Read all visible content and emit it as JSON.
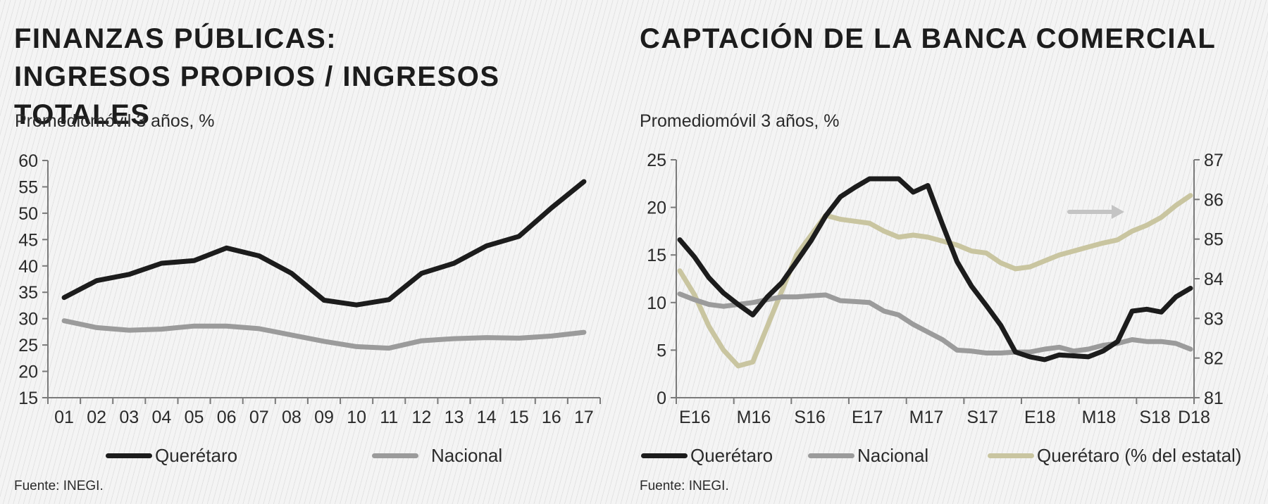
{
  "left": {
    "title_line1": "FINANZAS PÚBLICAS:",
    "title_line2": "INGRESOS PROPIOS / INGRESOS TOTALES",
    "subtitle": "Promediomóvil 3 años, %",
    "legend": [
      {
        "label": "Querétaro",
        "color": "#1c1c1c"
      },
      {
        "label": "Nacional",
        "color": "#9b9b9b"
      }
    ],
    "source": "Fuente: INEGI."
  },
  "right": {
    "title": "CAPTACIÓN DE LA BANCA COMERCIAL",
    "subtitle": "Promediomóvil 3 años, %",
    "legend": [
      {
        "label": "Querétaro",
        "color": "#1c1c1c"
      },
      {
        "label": "Nacional",
        "color": "#9b9b9b"
      },
      {
        "label": "Querétaro (% del estatal)",
        "color": "#c9c5a0"
      }
    ],
    "source": "Fuente: INEGI."
  },
  "chart_data": [
    {
      "type": "line",
      "title": "FINANZAS PÚBLICAS: INGRESOS PROPIOS / INGRESOS TOTALES",
      "subtitle": "Promediomóvil 3 años, %",
      "categories": [
        "01",
        "02",
        "03",
        "04",
        "05",
        "06",
        "07",
        "08",
        "09",
        "10",
        "11",
        "12",
        "13",
        "14",
        "15",
        "16",
        "17"
      ],
      "ylim": [
        15,
        60
      ],
      "yticks": [
        15,
        20,
        25,
        30,
        35,
        40,
        45,
        50,
        55,
        60
      ],
      "grid": false,
      "legend_position": "bottom",
      "series": [
        {
          "name": "Querétaro",
          "color": "#1c1c1c",
          "values": [
            34,
            37.2,
            38.4,
            40.5,
            41,
            43.4,
            41.9,
            38.6,
            33.5,
            32.6,
            33.6,
            38.6,
            40.5,
            43.8,
            45.6,
            51,
            56
          ]
        },
        {
          "name": "Nacional",
          "color": "#9b9b9b",
          "values": [
            29.6,
            28.3,
            27.8,
            28,
            28.6,
            28.6,
            28.1,
            26.9,
            25.7,
            24.7,
            24.4,
            25.8,
            26.2,
            26.4,
            26.3,
            26.7,
            27.4
          ]
        }
      ]
    },
    {
      "type": "line",
      "title": "CAPTACIÓN DE LA BANCA COMERCIAL",
      "subtitle": "Promediomóvil 3 años, %",
      "x_tick_labels": [
        "E16",
        "M16",
        "S16",
        "E17",
        "M17",
        "S17",
        "E18",
        "M18",
        "S18",
        "D18"
      ],
      "ylim": [
        0,
        25
      ],
      "yticks": [
        0,
        5,
        10,
        15,
        20,
        25
      ],
      "y2lim": [
        81,
        87
      ],
      "y2ticks": [
        81,
        82,
        83,
        84,
        85,
        86,
        87
      ],
      "grid": false,
      "legend_position": "bottom",
      "annotation": "arrow pointing right toward the secondary (right) axis",
      "series": [
        {
          "name": "Querétaro",
          "axis": "left",
          "color": "#1c1c1c",
          "values": [
            16.6,
            14.8,
            12.6,
            11.0,
            9.8,
            8.7,
            10.6,
            12.1,
            14.3,
            16.5,
            19.1,
            21.1,
            22.1,
            23.0,
            23.0,
            23.0,
            21.6,
            22.3,
            18.2,
            14.3,
            11.7,
            9.7,
            7.6,
            4.8,
            4.3,
            4.0,
            4.5,
            4.4,
            4.3,
            4.9,
            5.9,
            9.1,
            9.3,
            9.0,
            10.6,
            11.5
          ]
        },
        {
          "name": "Nacional",
          "axis": "left",
          "color": "#9b9b9b",
          "values": [
            10.9,
            10.3,
            9.8,
            9.6,
            9.8,
            10.0,
            10.3,
            10.6,
            10.6,
            10.7,
            10.8,
            10.2,
            10.1,
            10.0,
            9.1,
            8.7,
            7.7,
            6.9,
            6.1,
            5.0,
            4.9,
            4.7,
            4.7,
            4.8,
            4.8,
            5.1,
            5.3,
            4.9,
            5.1,
            5.5,
            5.7,
            6.1,
            5.9,
            5.9,
            5.7,
            5.1
          ]
        },
        {
          "name": "Querétaro (% del estatal)",
          "axis": "right",
          "color": "#c9c5a0",
          "values": [
            84.2,
            83.6,
            82.8,
            82.2,
            81.8,
            81.9,
            82.8,
            83.7,
            84.6,
            85.1,
            85.6,
            85.5,
            85.45,
            85.4,
            85.2,
            85.05,
            85.1,
            85.05,
            84.95,
            84.85,
            84.7,
            84.65,
            84.4,
            84.25,
            84.3,
            84.45,
            84.6,
            84.7,
            84.8,
            84.9,
            84.98,
            85.2,
            85.35,
            85.55,
            85.85,
            86.1
          ]
        }
      ]
    }
  ]
}
